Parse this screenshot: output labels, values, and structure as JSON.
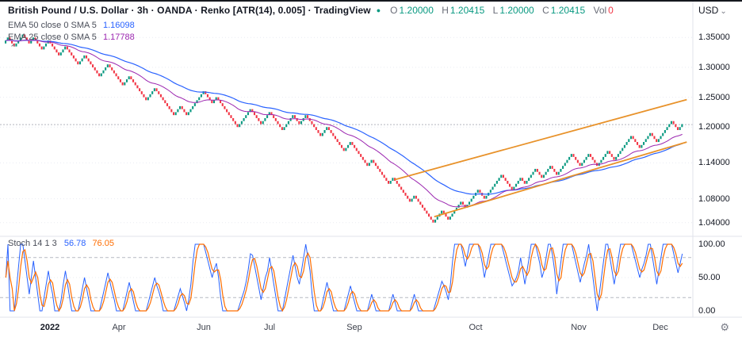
{
  "header": {
    "title": "British Pound / U.S. Dollar · 3h · OANDA · Renko [ATR(14), 0.005] · TradingView",
    "ohlc": {
      "o_label": "O",
      "o_value": "1.20000",
      "h_label": "H",
      "h_value": "1.20415",
      "l_label": "L",
      "l_value": "1.20000",
      "c_label": "C",
      "c_value": "1.20415",
      "vol_label": "Vol",
      "vol_value": "0"
    }
  },
  "legends": {
    "ema50_label": "EMA 50 close 0 SMA 5",
    "ema50_value": "1.16098",
    "ema25_label": "EMA 25 close 0 SMA 5",
    "ema25_value": "1.17788",
    "stoch_label": "Stoch 14 1 3",
    "stoch_k_value": "56.78",
    "stoch_d_value": "76.05"
  },
  "axis": {
    "currency_label": "USD"
  },
  "icons": {
    "status_dot": "●",
    "chevron_down": "⌄",
    "gear": "⚙",
    "collapse_up": "⌃"
  },
  "colors": {
    "up": "#089981",
    "down": "#f23645",
    "ema50": "#2962ff",
    "ema25": "#9c27b0",
    "trendline": "#e8922a",
    "stoch_k": "#2962ff",
    "stoch_d": "#ff6d00",
    "grid": "#e9ecf2",
    "separator": "#e0e3eb",
    "last_price_line": "#b2b5be",
    "level_dash": "#b6b9c2",
    "text_dark": "#131722",
    "text_gray": "#787b86"
  },
  "chart_data": {
    "type": "renko",
    "title": "British Pound / U.S. Dollar, 3h, OANDA, Renko ATR(14) 0.005",
    "symbol": "GBPUSD",
    "brick_size": 0.005,
    "start_price": 1.34,
    "runs": [
      2,
      -3,
      4,
      -3,
      2,
      -4,
      3,
      -5,
      3,
      -6,
      3,
      -7,
      4,
      -7,
      3,
      -8,
      4,
      -9,
      3,
      -3,
      8,
      -4,
      2,
      -10,
      6,
      -5,
      4,
      -6,
      5,
      -3,
      3,
      -7,
      3,
      -8,
      3,
      -8,
      2,
      -8,
      2,
      -8,
      2,
      -9,
      4,
      -3,
      6,
      -2,
      6,
      -3,
      8,
      -5,
      4,
      -2,
      5,
      -3,
      4,
      -3,
      7,
      -4,
      4,
      -4,
      5,
      -3,
      8,
      -4,
      5,
      -3,
      7,
      -3,
      2
    ],
    "ohlc": {
      "open": 1.2,
      "high": 1.20415,
      "low": 1.2,
      "close": 1.20415,
      "volume": 0
    },
    "last_price": 1.20415,
    "price_range": [
      1.025,
      1.365
    ],
    "price_ticks": [
      1.35,
      1.3,
      1.25,
      1.2,
      1.14,
      1.08,
      1.04
    ],
    "emas": [
      {
        "period": 50,
        "color_key": "ema50",
        "last": 1.16098
      },
      {
        "period": 25,
        "color_key": "ema25",
        "last": 1.17788
      }
    ],
    "trendlines": [
      {
        "x1": 0.575,
        "p1": 1.112,
        "x2": 1.005,
        "p2": 1.246
      },
      {
        "x1": 0.633,
        "p1": 1.05,
        "x2": 1.005,
        "p2": 1.175
      }
    ],
    "stoch": {
      "period": 14,
      "k": 1,
      "d": 3,
      "levels": [
        80,
        20
      ],
      "ticks": [
        100,
        50,
        0
      ],
      "last_k": 56.78,
      "last_d": 76.05
    },
    "x_ticks": [
      {
        "label": "2022",
        "x": 0.072
      },
      {
        "label": "Apr",
        "x": 0.172
      },
      {
        "label": "Jun",
        "x": 0.294
      },
      {
        "label": "Jul",
        "x": 0.389
      },
      {
        "label": "Sep",
        "x": 0.511
      },
      {
        "label": "Oct",
        "x": 0.686
      },
      {
        "label": "Nov",
        "x": 0.835
      },
      {
        "label": "Dec",
        "x": 0.953
      }
    ]
  }
}
